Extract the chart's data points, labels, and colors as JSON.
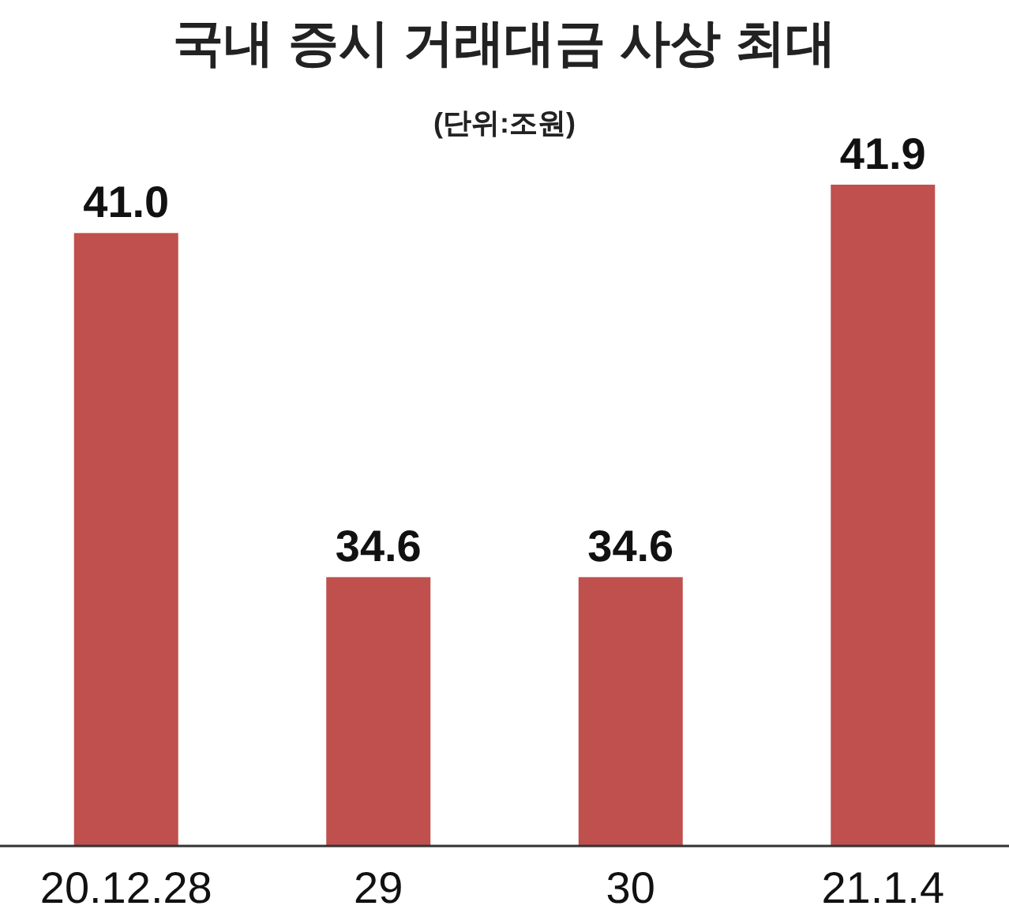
{
  "chart_data": {
    "type": "bar",
    "title": "국내 증시 거래대금 사상 최대",
    "subtitle": "(단위:조원)",
    "categories": [
      "20.12.28",
      "29",
      "30",
      "21.1.4"
    ],
    "values": [
      41.0,
      34.6,
      34.6,
      41.9
    ],
    "value_labels": [
      "41.0",
      "34.6",
      "34.6",
      "41.9"
    ],
    "color": "#c0504d",
    "ylim": [
      29.6,
      41.9
    ]
  }
}
